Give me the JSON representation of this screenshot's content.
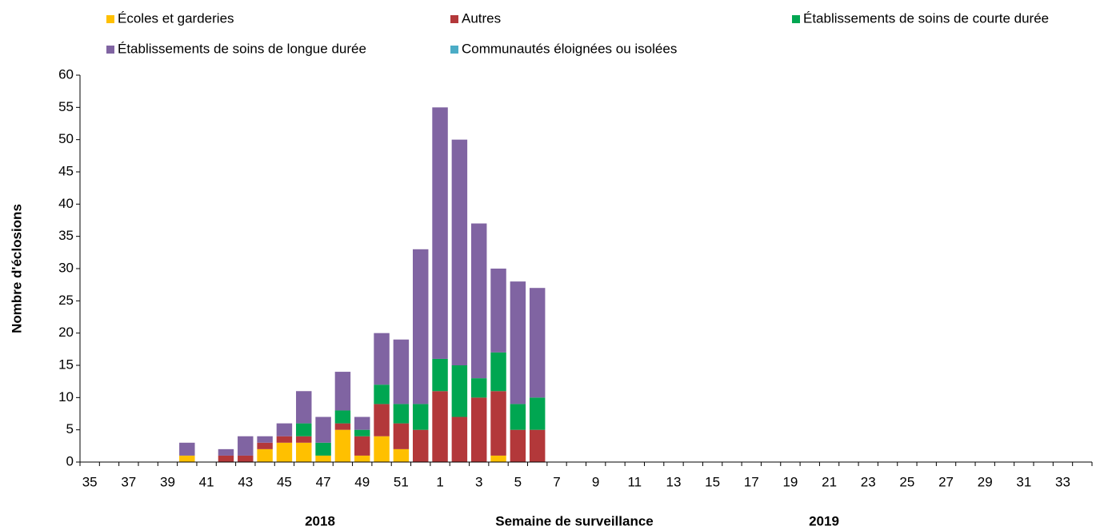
{
  "chart_data": {
    "type": "stacked_bar",
    "x_label": "Semaine de surveillance",
    "y_label": "Nombre d'éclosions",
    "year_labels": [
      "2018",
      "2019"
    ],
    "categories": [
      "35",
      null,
      "37",
      null,
      "39",
      null,
      "41",
      null,
      "43",
      null,
      "45",
      null,
      "47",
      null,
      "49",
      null,
      "51",
      null,
      "1",
      null,
      "3",
      null,
      "5",
      null,
      "7",
      null,
      "9",
      null,
      "11",
      null,
      "13",
      null,
      "15",
      null,
      "17",
      null,
      "19",
      null,
      "21",
      null,
      "23",
      null,
      "25",
      null,
      "27",
      null,
      "29",
      null,
      "31",
      null,
      "33",
      null
    ],
    "series": [
      {
        "name": "Écoles et garderies",
        "color": "#ffc000",
        "values": [
          0,
          0,
          0,
          0,
          0,
          1,
          0,
          0,
          0,
          2,
          3,
          3,
          1,
          5,
          1,
          4,
          2,
          0,
          0,
          0,
          0,
          1,
          0,
          0,
          null,
          null,
          null,
          null,
          null,
          null,
          null,
          null,
          null,
          null,
          null,
          null,
          null,
          null,
          null,
          null,
          null,
          null,
          null,
          null,
          null,
          null,
          null,
          null,
          null,
          null,
          null,
          null
        ]
      },
      {
        "name": "Autres",
        "color": "#b3383a",
        "values": [
          0,
          0,
          0,
          0,
          0,
          0,
          0,
          1,
          1,
          1,
          1,
          1,
          0,
          1,
          3,
          5,
          4,
          5,
          11,
          7,
          10,
          10,
          5,
          5,
          null,
          null,
          null,
          null,
          null,
          null,
          null,
          null,
          null,
          null,
          null,
          null,
          null,
          null,
          null,
          null,
          null,
          null,
          null,
          null,
          null,
          null,
          null,
          null,
          null,
          null,
          null,
          null
        ]
      },
      {
        "name": "Établissements de soins de courte durée",
        "color": "#00a651",
        "values": [
          0,
          0,
          0,
          0,
          0,
          0,
          0,
          0,
          0,
          0,
          0,
          2,
          2,
          2,
          1,
          3,
          3,
          4,
          5,
          8,
          3,
          6,
          4,
          5,
          null,
          null,
          null,
          null,
          null,
          null,
          null,
          null,
          null,
          null,
          null,
          null,
          null,
          null,
          null,
          null,
          null,
          null,
          null,
          null,
          null,
          null,
          null,
          null,
          null,
          null,
          null,
          null
        ]
      },
      {
        "name": "Établissements de soins de longue durée",
        "color": "#8064a2",
        "values": [
          0,
          0,
          0,
          0,
          0,
          2,
          0,
          1,
          3,
          1,
          2,
          5,
          4,
          6,
          2,
          8,
          10,
          24,
          39,
          35,
          24,
          13,
          19,
          17,
          null,
          null,
          null,
          null,
          null,
          null,
          null,
          null,
          null,
          null,
          null,
          null,
          null,
          null,
          null,
          null,
          null,
          null,
          null,
          null,
          null,
          null,
          null,
          null,
          null,
          null,
          null,
          null
        ]
      },
      {
        "name": "Communautés éloignées ou isolées",
        "color": "#4bacc6",
        "values": [
          0,
          0,
          0,
          0,
          0,
          0,
          0,
          0,
          0,
          0,
          0,
          0,
          0,
          0,
          0,
          0,
          0,
          0,
          0,
          0,
          0,
          0,
          0,
          0,
          null,
          null,
          null,
          null,
          null,
          null,
          null,
          null,
          null,
          null,
          null,
          null,
          null,
          null,
          null,
          null,
          null,
          null,
          null,
          null,
          null,
          null,
          null,
          null,
          null,
          null,
          null,
          null
        ]
      }
    ],
    "ylim": [
      0,
      60
    ],
    "yticks": [
      0,
      5,
      10,
      15,
      20,
      25,
      30,
      35,
      40,
      45,
      50,
      55,
      60
    ]
  }
}
